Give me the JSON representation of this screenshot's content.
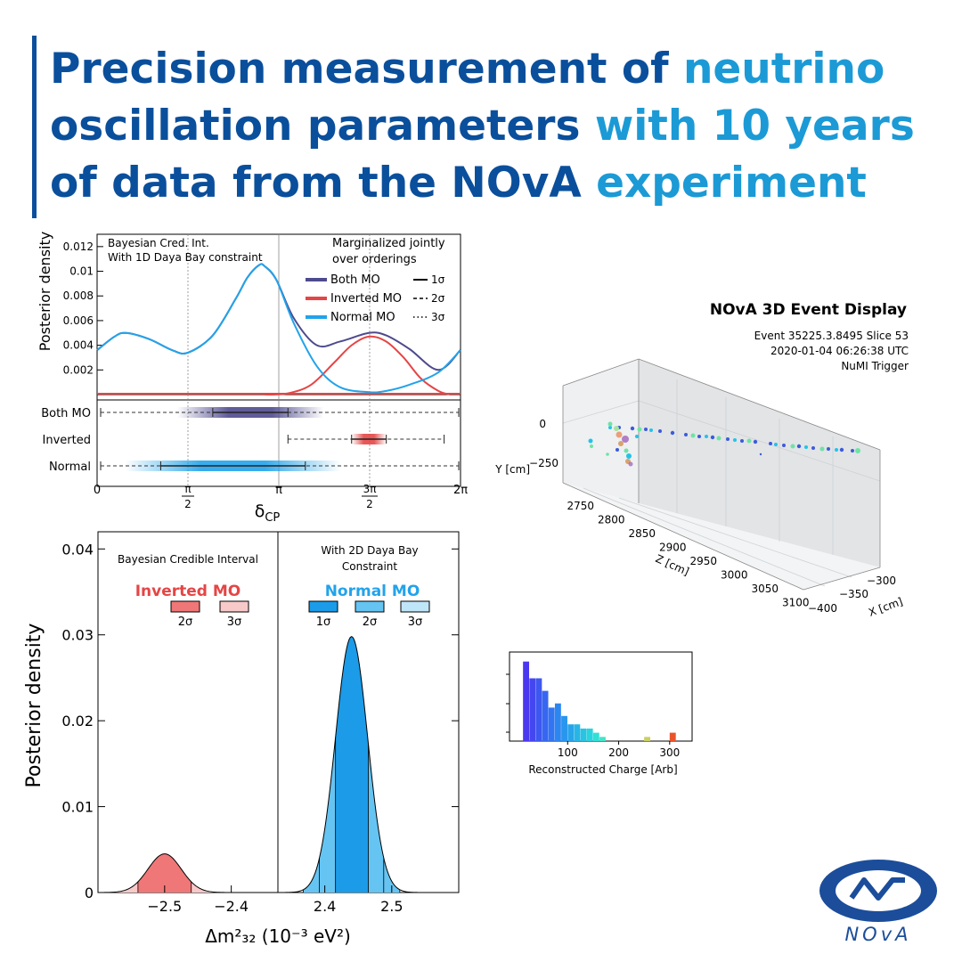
{
  "header": {
    "title_parts": [
      "Precision measurement of ",
      "neutrino",
      " oscillation parameters ",
      "with 10 years",
      " of data from the NOvA ",
      "experiment"
    ]
  },
  "colors": {
    "both": "#4e4a8e",
    "inverted": "#e54545",
    "normal": "#22a3ea",
    "dark_blue": "#0a4f9c",
    "light_blue": "#1b9ad6"
  },
  "panel_dcp": {
    "ylabel": "Posterior density",
    "xlabel_main": "δ",
    "xlabel_sub": "CP",
    "note_left": [
      "Bayesian Cred. Int.",
      "With 1D Daya Bay constraint"
    ],
    "note_right": [
      "Marginalized jointly",
      "over orderings"
    ],
    "legend": [
      "Both MO",
      "Inverted MO",
      "Normal MO"
    ],
    "sigma_legend": [
      "1σ",
      "2σ",
      "3σ"
    ],
    "row_labels": [
      "Both MO",
      "Inverted",
      "Normal"
    ],
    "x_ticks": [
      "0",
      "π",
      "2π"
    ],
    "x_ticks_frac": [
      {
        "num": "π",
        "den": "2"
      },
      {
        "num": "3π",
        "den": "2"
      }
    ]
  },
  "panel_dm": {
    "ylabel": "Posterior density",
    "xlabel": "Δm²₃₂ (10⁻³ eV²)",
    "left_note": "Bayesian Credible Interval",
    "left_title": "Inverted MO",
    "left_sigmas": [
      "2σ",
      "3σ"
    ],
    "right_note": [
      "With 2D Daya Bay",
      "Constraint"
    ],
    "right_title": "Normal MO",
    "right_sigmas": [
      "1σ",
      "2σ",
      "3σ"
    ]
  },
  "event_display": {
    "title": "NOvA 3D Event Display",
    "info": [
      "Event 35225.3.8495 Slice 53",
      "2020-01-04 06:26:38 UTC",
      "NuMI Trigger"
    ],
    "y_label": "Y [cm]",
    "z_label": "Z [cm]",
    "x_label": "X [cm]",
    "y_ticks": [
      "0",
      "−250"
    ],
    "z_ticks": [
      "2750",
      "2800",
      "2850",
      "2900",
      "2950",
      "3000",
      "3050",
      "3100"
    ],
    "x_ticks": [
      "−300",
      "−350",
      "−400"
    ]
  },
  "histogram": {
    "xlabel": "Reconstructed Charge [Arb]",
    "x_ticks": [
      "100",
      "200",
      "300"
    ]
  },
  "logo": {
    "text": "NOvA"
  },
  "chart_data": [
    {
      "type": "line",
      "title": "",
      "ylabel": "Posterior density",
      "xlabel": "δCP",
      "xlim": [
        0,
        6.2832
      ],
      "ylim": [
        0,
        0.013
      ],
      "y_ticks": [
        0.002,
        0.004,
        0.006,
        0.008,
        0.01,
        0.012
      ],
      "x_tick_values": [
        0,
        1.5708,
        3.1416,
        4.7124,
        6.2832
      ],
      "series": [
        {
          "name": "Both MO",
          "x": [
            0,
            0.3,
            0.5,
            0.9,
            1.3,
            1.57,
            2.0,
            2.4,
            2.6,
            2.8,
            2.9,
            3.1,
            3.4,
            3.8,
            4.2,
            4.7,
            5.0,
            5.4,
            5.9,
            6.28
          ],
          "y": [
            0.0036,
            0.0047,
            0.005,
            0.0045,
            0.0036,
            0.0034,
            0.0048,
            0.0078,
            0.0095,
            0.0105,
            0.0104,
            0.0093,
            0.0062,
            0.004,
            0.0043,
            0.005,
            0.0048,
            0.0037,
            0.002,
            0.0036
          ]
        },
        {
          "name": "Inverted MO",
          "x": [
            2.9,
            3.3,
            3.7,
            4.1,
            4.4,
            4.7,
            5.0,
            5.3,
            5.6,
            5.9,
            6.1
          ],
          "y": [
            0.0,
            0.0001,
            0.0008,
            0.0026,
            0.004,
            0.0047,
            0.0043,
            0.003,
            0.0013,
            0.0003,
            0.0
          ]
        },
        {
          "name": "Normal MO",
          "x": [
            0,
            0.3,
            0.5,
            0.9,
            1.3,
            1.57,
            2.0,
            2.4,
            2.6,
            2.8,
            2.9,
            3.1,
            3.4,
            3.8,
            4.2,
            4.7,
            5.0,
            5.4,
            5.9,
            6.28
          ],
          "y": [
            0.0036,
            0.0047,
            0.005,
            0.0045,
            0.0036,
            0.0034,
            0.0048,
            0.0078,
            0.0095,
            0.0105,
            0.0104,
            0.0093,
            0.0058,
            0.0023,
            0.0006,
            0.0002,
            0.0003,
            0.0008,
            0.0018,
            0.0036
          ]
        }
      ],
      "intervals": [
        {
          "name": "Both MO",
          "level": "1σ",
          "ranges": [
            [
              2.0,
              3.3
            ]
          ]
        },
        {
          "name": "Inverted",
          "level": "1σ",
          "ranges": [
            [
              4.4,
              5.0
            ]
          ]
        },
        {
          "name": "Normal",
          "level": "1σ",
          "ranges": [
            [
              1.1,
              3.6
            ]
          ]
        }
      ]
    },
    {
      "type": "area",
      "ylabel": "Posterior density",
      "xlabel": "Δm²₃₂ (10⁻³ eV²)",
      "ylim": [
        0,
        0.042
      ],
      "y_ticks": [
        0,
        0.01,
        0.02,
        0.03,
        0.04
      ],
      "panels": [
        {
          "name": "Inverted MO",
          "xlim": [
            -2.6,
            -2.33
          ],
          "x_ticks": [
            -2.5,
            -2.4
          ],
          "mean": -2.5,
          "sigma": 0.025,
          "peak": 0.0045,
          "intervals": {
            "2σ": [
              -2.54,
              -2.46
            ],
            "3σ": [
              -2.58,
              -2.42
            ]
          }
        },
        {
          "name": "Normal MO",
          "xlim": [
            2.33,
            2.6
          ],
          "x_ticks": [
            2.4,
            2.5
          ],
          "mean": 2.44,
          "sigma": 0.024,
          "peak": 0.0298,
          "intervals": {
            "1σ": [
              2.416,
              2.465
            ],
            "2σ": [
              2.392,
              2.488
            ],
            "3σ": [
              2.368,
              2.512
            ]
          }
        }
      ]
    },
    {
      "type": "bar",
      "xlabel": "Reconstructed Charge [Arb]",
      "x_ticks": [
        100,
        200,
        300
      ],
      "bin_width": 12.5,
      "bin_starts": [
        12.5,
        25,
        37.5,
        50,
        62.5,
        75,
        87.5,
        100,
        112.5,
        125,
        137.5,
        150,
        162.5,
        250,
        300
      ],
      "values": [
        19,
        15,
        15,
        12,
        8,
        9,
        6,
        4,
        4,
        3,
        3,
        2,
        1,
        1,
        2
      ]
    }
  ]
}
